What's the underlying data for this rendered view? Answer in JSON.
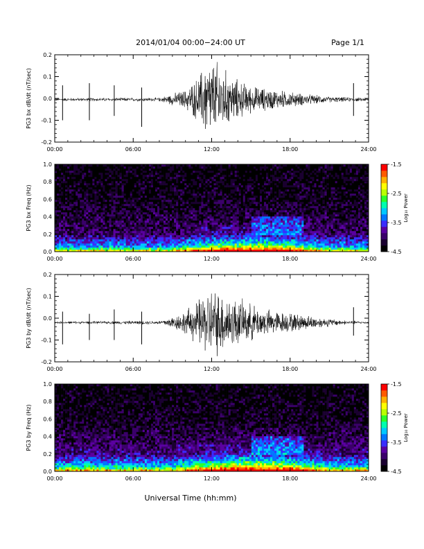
{
  "header": {
    "title": "2014/01/04  00:00−24:00 UT",
    "page_label": "Page 1/1"
  },
  "footer": {
    "xlabel": "Universal Time (hh:mm)"
  },
  "colorbar": {
    "label": "Log₁₀ Power",
    "ticks": [
      "-1.5",
      "-2.5",
      "-3.5",
      "-4.5"
    ],
    "colormap": [
      "#000000",
      "#1a0030",
      "#3a006a",
      "#5a00a0",
      "#3a2cff",
      "#0077ff",
      "#00c8ff",
      "#00ffb0",
      "#2aff2a",
      "#b8ff00",
      "#ffff00",
      "#ffb000",
      "#ff5a00",
      "#ff0000"
    ]
  },
  "chart_data": [
    {
      "type": "line",
      "ylabel": "PG3 bx dB/dt (nT/sec)",
      "xlim": [
        0,
        24
      ],
      "ylim": [
        -0.2,
        0.2
      ],
      "x_ticks": [
        "00:00",
        "06:00",
        "12:00",
        "18:00",
        "24:00"
      ],
      "y_ticks": [
        "0.2",
        "0.1",
        "0.0",
        "-0.1",
        "-0.2"
      ],
      "grid": false,
      "baseline": -0.005,
      "spikes": [
        {
          "x": 0.6,
          "y": -0.1,
          "y2": 0.06
        },
        {
          "x": 2.65,
          "y": -0.1,
          "y2": 0.07
        },
        {
          "x": 4.55,
          "y": -0.08,
          "y2": 0.06
        },
        {
          "x": 6.65,
          "y": -0.13,
          "y2": 0.05
        },
        {
          "x": 22.85,
          "y": -0.08,
          "y2": 0.07
        }
      ],
      "activity_envelope": [
        {
          "x": 0,
          "amp": 0.008
        },
        {
          "x": 8,
          "amp": 0.01
        },
        {
          "x": 9,
          "amp": 0.03
        },
        {
          "x": 10,
          "amp": 0.05
        },
        {
          "x": 11,
          "amp": 0.12
        },
        {
          "x": 11.5,
          "amp": 0.2
        },
        {
          "x": 12.5,
          "amp": 0.2
        },
        {
          "x": 13.5,
          "amp": 0.12
        },
        {
          "x": 15,
          "amp": 0.07
        },
        {
          "x": 17,
          "amp": 0.05
        },
        {
          "x": 19,
          "amp": 0.03
        },
        {
          "x": 21,
          "amp": 0.015
        },
        {
          "x": 24,
          "amp": 0.008
        }
      ]
    },
    {
      "type": "heatmap",
      "ylabel": "PG3 bx Freq (Hz)",
      "xlim": [
        0,
        24
      ],
      "ylim": [
        0,
        1.0
      ],
      "x_ticks": [
        "00:00",
        "06:00",
        "12:00",
        "18:00",
        "24:00"
      ],
      "y_ticks": [
        "1.0",
        "0.8",
        "0.6",
        "0.4",
        "0.2",
        "0.0"
      ],
      "z_range": [
        -4.5,
        -1.5
      ],
      "z_label": "Log10 Power",
      "pattern": [
        {
          "freq": 0.0,
          "power": -2.0
        },
        {
          "freq": 0.05,
          "power": -3.2
        },
        {
          "freq": 0.2,
          "power": -4.0
        },
        {
          "freq": 0.6,
          "power": -4.3
        },
        {
          "freq": 1.0,
          "power": -4.4
        }
      ],
      "active_hours": [
        9,
        21
      ]
    },
    {
      "type": "line",
      "ylabel": "PG3 by dB/dt (nT/sec)",
      "xlim": [
        0,
        24
      ],
      "ylim": [
        -0.2,
        0.2
      ],
      "x_ticks": [
        "00:00",
        "06:00",
        "12:00",
        "18:00",
        "24:00"
      ],
      "y_ticks": [
        "0.2",
        "0.1",
        "0.0",
        "-0.1",
        "-0.2"
      ],
      "grid": false,
      "baseline": -0.02,
      "spikes": [
        {
          "x": 0.6,
          "y": -0.12,
          "y2": 0.03
        },
        {
          "x": 2.65,
          "y": -0.1,
          "y2": 0.02
        },
        {
          "x": 4.55,
          "y": -0.1,
          "y2": 0.04
        },
        {
          "x": 6.65,
          "y": -0.12,
          "y2": 0.03
        },
        {
          "x": 22.85,
          "y": -0.08,
          "y2": 0.05
        }
      ],
      "activity_envelope": [
        {
          "x": 0,
          "amp": 0.006
        },
        {
          "x": 8,
          "amp": 0.01
        },
        {
          "x": 9,
          "amp": 0.03
        },
        {
          "x": 10,
          "amp": 0.06
        },
        {
          "x": 11,
          "amp": 0.12
        },
        {
          "x": 11.8,
          "amp": 0.18
        },
        {
          "x": 12.8,
          "amp": 0.16
        },
        {
          "x": 14,
          "amp": 0.12
        },
        {
          "x": 16,
          "amp": 0.07
        },
        {
          "x": 18,
          "amp": 0.05
        },
        {
          "x": 20,
          "amp": 0.03
        },
        {
          "x": 22,
          "amp": 0.012
        },
        {
          "x": 24,
          "amp": 0.006
        }
      ]
    },
    {
      "type": "heatmap",
      "ylabel": "PG3 by Freq (Hz)",
      "xlim": [
        0,
        24
      ],
      "ylim": [
        0,
        1.0
      ],
      "x_ticks": [
        "00:00",
        "06:00",
        "12:00",
        "18:00",
        "24:00"
      ],
      "y_ticks": [
        "1.0",
        "0.8",
        "0.6",
        "0.4",
        "0.2",
        "0.0"
      ],
      "z_range": [
        -4.5,
        -1.5
      ],
      "z_label": "Log10 Power",
      "pattern": [
        {
          "freq": 0.0,
          "power": -1.9
        },
        {
          "freq": 0.05,
          "power": -3.0
        },
        {
          "freq": 0.2,
          "power": -3.9
        },
        {
          "freq": 0.6,
          "power": -4.3
        },
        {
          "freq": 1.0,
          "power": -4.4
        }
      ],
      "active_hours": [
        9,
        21
      ]
    }
  ]
}
